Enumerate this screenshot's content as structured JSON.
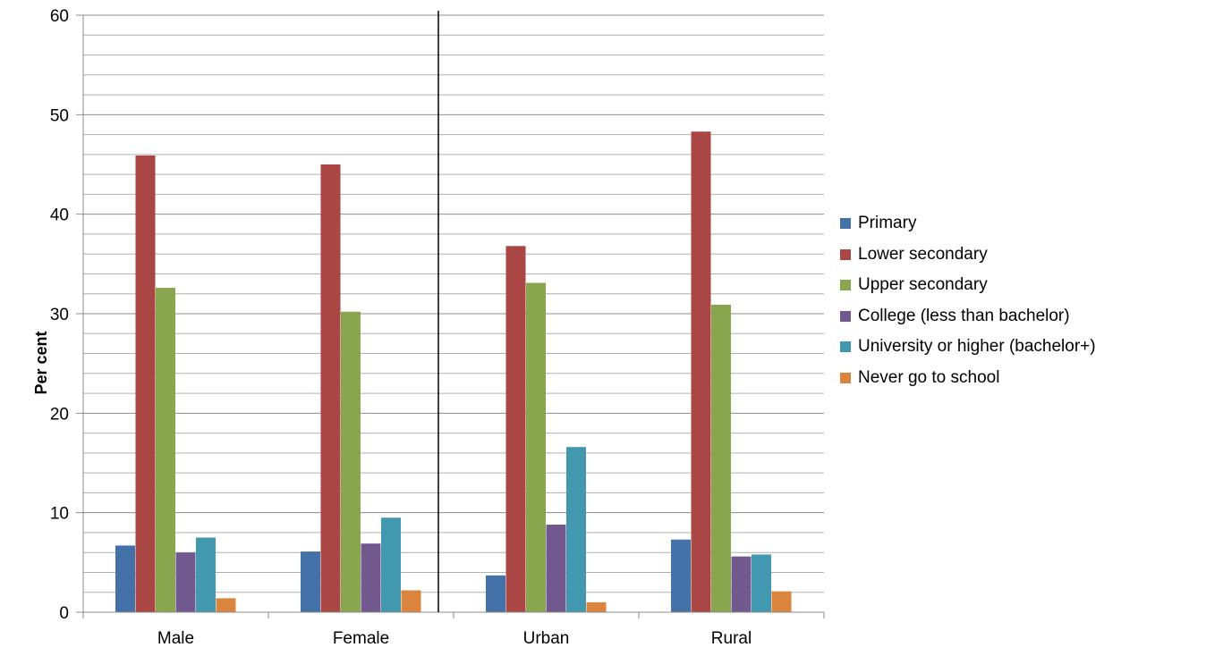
{
  "chart_data": {
    "type": "bar",
    "title": "",
    "xlabel": "",
    "ylabel": "Per cent",
    "ylim": [
      0,
      60
    ],
    "ytick_step": 10,
    "minor_grid_step": 2,
    "grid": true,
    "legend_position": "right",
    "categories": [
      "Male",
      "Female",
      "Urban",
      "Rural"
    ],
    "series": [
      {
        "name": "Primary",
        "color": "#4472a8",
        "values": [
          6.7,
          6.1,
          3.7,
          7.3
        ]
      },
      {
        "name": "Lower secondary",
        "color": "#aa4643",
        "values": [
          45.9,
          45.0,
          36.8,
          48.3
        ]
      },
      {
        "name": "Upper secondary",
        "color": "#89a54e",
        "values": [
          32.6,
          30.2,
          33.1,
          30.9
        ]
      },
      {
        "name": "College (less than bachelor)",
        "color": "#71588f",
        "values": [
          6.0,
          6.9,
          8.8,
          5.6
        ]
      },
      {
        "name": "University or higher (bachelor+)",
        "color": "#4198af",
        "values": [
          7.5,
          9.5,
          16.6,
          5.8
        ]
      },
      {
        "name": "Never go to school",
        "color": "#db843d",
        "values": [
          1.4,
          2.2,
          1.0,
          2.1
        ]
      }
    ]
  }
}
